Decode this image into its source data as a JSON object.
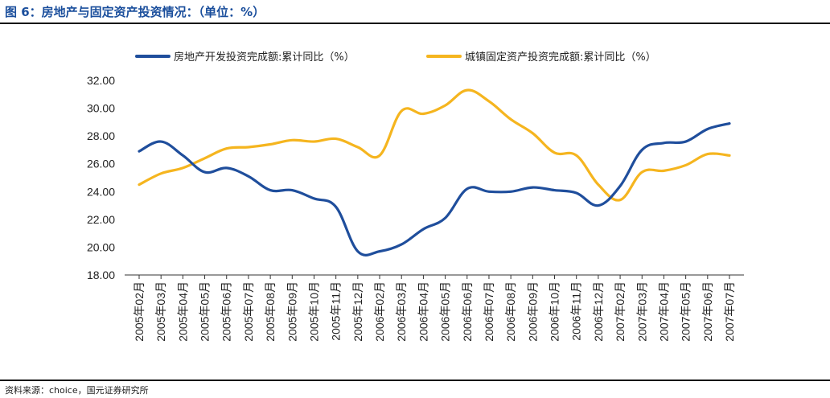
{
  "title": "图 6：房地产与固定资产投资情况：（单位：%）",
  "source": "资料来源：choice，国元证券研究所",
  "colors": {
    "title": "#1a4e9c",
    "series_1": "#1f4e9c",
    "series_2": "#f5b51f"
  },
  "chart_data": {
    "type": "line",
    "title": "房地产与固定资产投资情况：（单位：%）",
    "xlabel": "",
    "ylabel": "",
    "ylim": [
      18,
      32
    ],
    "yticks": [
      "18.00",
      "20.00",
      "22.00",
      "24.00",
      "26.00",
      "28.00",
      "30.00",
      "32.00"
    ],
    "legend_position": "top",
    "categories": [
      "2005年02月",
      "2005年03月",
      "2005年04月",
      "2005年05月",
      "2005年06月",
      "2005年07月",
      "2005年08月",
      "2005年09月",
      "2005年10月",
      "2005年11月",
      "2005年12月",
      "2006年02月",
      "2006年03月",
      "2006年04月",
      "2006年05月",
      "2006年06月",
      "2006年07月",
      "2006年08月",
      "2006年09月",
      "2006年10月",
      "2006年11月",
      "2006年12月",
      "2007年02月",
      "2007年03月",
      "2007年04月",
      "2007年05月",
      "2007年06月",
      "2007年07月"
    ],
    "series": [
      {
        "name": "房地产开发投资完成额:累计同比（%）",
        "values": [
          26.9,
          27.6,
          26.6,
          25.4,
          25.7,
          25.1,
          24.1,
          24.1,
          23.5,
          22.9,
          19.7,
          19.7,
          20.2,
          21.3,
          22.1,
          24.2,
          24.0,
          24.0,
          24.3,
          24.1,
          23.9,
          23.0,
          24.4,
          27.0,
          27.5,
          27.6,
          28.5,
          28.9
        ]
      },
      {
        "name": "城镇固定资产投资完成额:累计同比（%）",
        "values": [
          24.5,
          25.3,
          25.7,
          26.4,
          27.1,
          27.2,
          27.4,
          27.7,
          27.6,
          27.8,
          27.2,
          26.6,
          29.8,
          29.6,
          30.2,
          31.3,
          30.5,
          29.2,
          28.2,
          26.8,
          26.6,
          24.5,
          23.4,
          25.4,
          25.5,
          25.9,
          26.7,
          26.6
        ]
      }
    ]
  }
}
